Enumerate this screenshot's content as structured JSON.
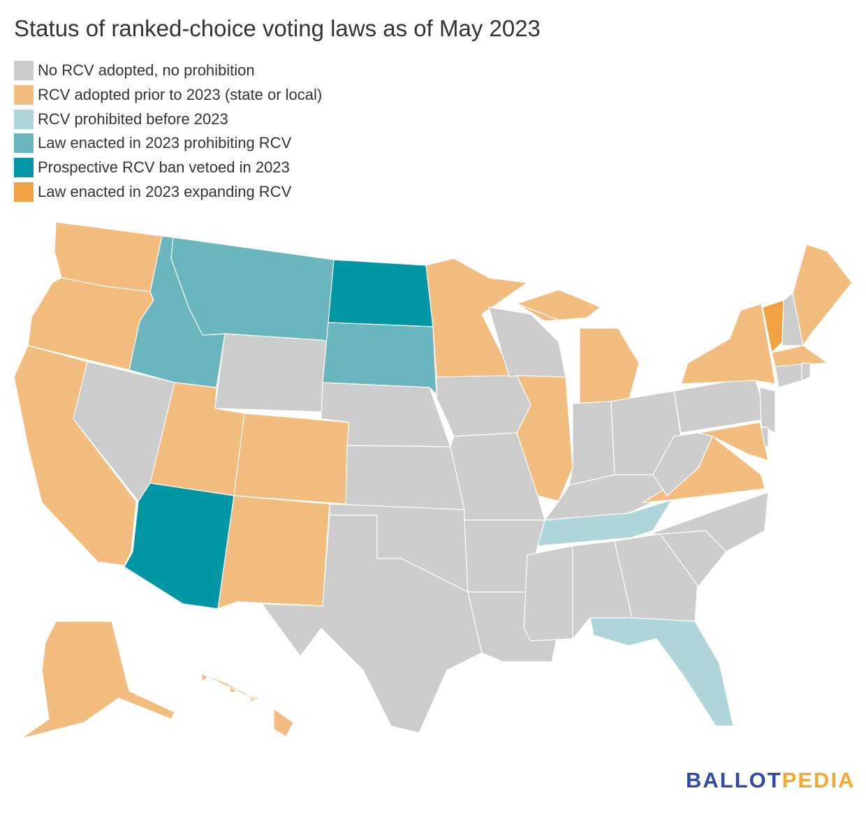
{
  "title": "Status of ranked-choice voting laws as of May 2023",
  "legend": [
    {
      "key": "none",
      "label": "No RCV adopted, no prohibition",
      "color": "#cccccc"
    },
    {
      "key": "adopted",
      "label": "RCV adopted prior to 2023 (state or local)",
      "color": "#f3bd7f"
    },
    {
      "key": "prohibited_before",
      "label": "RCV prohibited before 2023",
      "color": "#aed5da"
    },
    {
      "key": "prohibited_2023",
      "label": "Law enacted in 2023 prohibiting RCV",
      "color": "#69b6bf"
    },
    {
      "key": "vetoed",
      "label": "Prospective RCV ban vetoed in 2023",
      "color": "#0096a4"
    },
    {
      "key": "expanded",
      "label": "Law enacted in 2023 expanding RCV",
      "color": "#f0a040"
    }
  ],
  "states": {
    "WA": "adopted",
    "OR": "adopted",
    "CA": "adopted",
    "NV": "none",
    "ID": "prohibited_2023",
    "MT": "prohibited_2023",
    "WY": "none",
    "UT": "adopted",
    "CO": "adopted",
    "AZ": "vetoed",
    "NM": "adopted",
    "ND": "vetoed",
    "SD": "prohibited_2023",
    "NE": "none",
    "KS": "none",
    "OK": "none",
    "TX": "none",
    "MN": "adopted",
    "IA": "none",
    "MO": "none",
    "AR": "none",
    "LA": "none",
    "WI": "none",
    "IL": "adopted",
    "MI": "adopted",
    "IN": "none",
    "OH": "none",
    "KY": "none",
    "TN": "prohibited_before",
    "MS": "none",
    "AL": "none",
    "GA": "none",
    "FL": "prohibited_before",
    "SC": "none",
    "NC": "none",
    "VA": "adopted",
    "WV": "none",
    "PA": "none",
    "NY": "adopted",
    "NJ": "none",
    "DE": "none",
    "MD": "adopted",
    "VT": "expanded",
    "NH": "none",
    "ME": "adopted",
    "MA": "adopted",
    "CT": "none",
    "RI": "none",
    "AK": "adopted",
    "HI": "adopted"
  },
  "logo": {
    "part1": "BALLOT",
    "part2": "PEDIA"
  }
}
